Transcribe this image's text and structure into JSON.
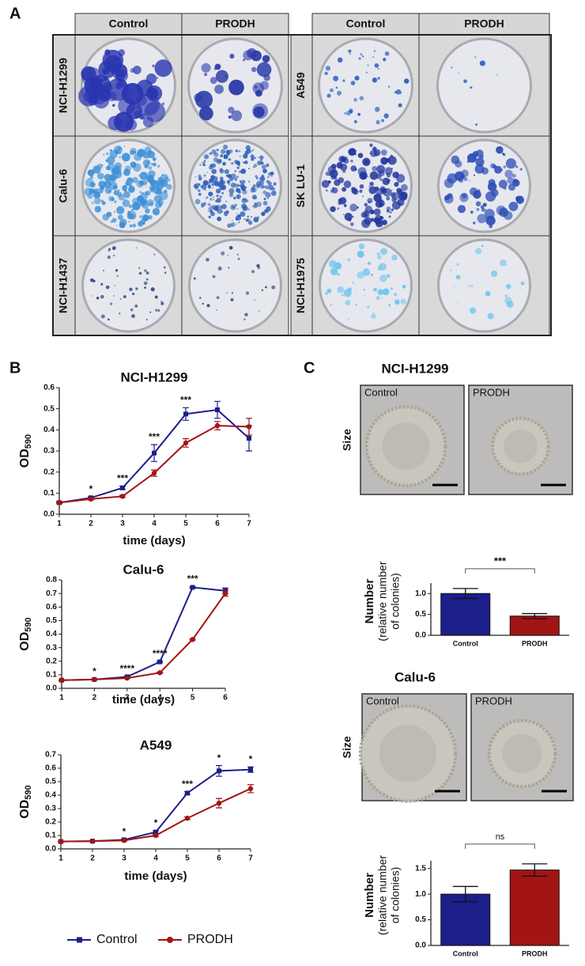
{
  "panel_labels": [
    "A",
    "B",
    "C"
  ],
  "panel_a": {
    "blocks": [
      {
        "columns": [
          "Control",
          "PRODH"
        ],
        "rows": [
          "NCI-H1299",
          "Calu-6",
          "NCI-H1437"
        ]
      },
      {
        "columns": [
          "Control",
          "PRODH"
        ],
        "rows": [
          "A549",
          "SK LU-1",
          "NCI-H1975"
        ]
      }
    ]
  },
  "chart_data": [
    {
      "type": "line",
      "title": "NCI-H1299",
      "xlabel": "time (days)",
      "ylabel": "OD",
      "ylabel_subscript": "590",
      "x": [
        1,
        2,
        3,
        4,
        5,
        6,
        7
      ],
      "xlim": [
        1,
        7
      ],
      "xticks": [
        1,
        2,
        3,
        4,
        5,
        6,
        7
      ],
      "ylim": [
        0,
        0.6
      ],
      "yticks": [
        {
          "value": 0,
          "label": "0.0"
        },
        0.1,
        0.2,
        0.3,
        0.4,
        0.5,
        0.6
      ],
      "series": [
        {
          "name": "Control",
          "color": "#1c1f8a",
          "marker": "square",
          "values": [
            0.055,
            0.078,
            0.125,
            0.29,
            0.475,
            0.495,
            0.36
          ],
          "errors": [
            0.005,
            0.005,
            0.008,
            0.04,
            0.03,
            0.04,
            0.06
          ]
        },
        {
          "name": "PRODH",
          "color": "#a31515",
          "marker": "circle",
          "values": [
            0.055,
            0.072,
            0.085,
            0.195,
            0.338,
            0.42,
            0.415
          ],
          "errors": [
            0.003,
            0.004,
            0.005,
            0.015,
            0.02,
            0.02,
            0.04
          ]
        }
      ],
      "significance": [
        null,
        "*",
        "***",
        "***",
        "***",
        null,
        null
      ]
    },
    {
      "type": "line",
      "title": "Calu-6",
      "xlabel": "time (days)",
      "ylabel": "OD",
      "ylabel_subscript": "590",
      "x": [
        1,
        2,
        3,
        4,
        5,
        6
      ],
      "xlim": [
        1,
        6
      ],
      "xticks": [
        1,
        2,
        3,
        4,
        5,
        6
      ],
      "ylim": [
        0,
        0.8
      ],
      "yticks": [
        {
          "value": 0,
          "label": "0.0"
        },
        0.1,
        0.2,
        0.3,
        0.4,
        0.5,
        0.6,
        0.7,
        0.8
      ],
      "series": [
        {
          "name": "Control",
          "color": "#1c1f8a",
          "marker": "square",
          "values": [
            0.06,
            0.065,
            0.085,
            0.195,
            0.745,
            0.72
          ],
          "errors": [
            0.003,
            0.003,
            0.004,
            0.005,
            0.005,
            0.02
          ]
        },
        {
          "name": "PRODH",
          "color": "#a31515",
          "marker": "circle",
          "values": [
            0.06,
            0.065,
            0.075,
            0.115,
            0.36,
            0.7
          ],
          "errors": [
            0.003,
            0.003,
            0.003,
            0.004,
            0.005,
            0.02
          ]
        }
      ],
      "significance": [
        null,
        "*",
        "****",
        "****",
        "***",
        null
      ]
    },
    {
      "type": "line",
      "title": "A549",
      "xlabel": "time (days)",
      "ylabel": "OD",
      "ylabel_subscript": "590",
      "x": [
        1,
        2,
        3,
        4,
        5,
        6,
        7
      ],
      "xlim": [
        1,
        7
      ],
      "xticks": [
        1,
        2,
        3,
        4,
        5,
        6,
        7
      ],
      "ylim": [
        0,
        0.7
      ],
      "yticks": [
        {
          "value": 0,
          "label": "0.0"
        },
        0.1,
        0.2,
        0.3,
        0.4,
        0.5,
        0.6,
        0.7
      ],
      "series": [
        {
          "name": "Control",
          "color": "#1c1f8a",
          "marker": "square",
          "values": [
            0.055,
            0.058,
            0.068,
            0.125,
            0.415,
            0.58,
            0.59
          ],
          "errors": [
            0.003,
            0.003,
            0.005,
            0.01,
            0.01,
            0.04,
            0.02
          ]
        },
        {
          "name": "PRODH",
          "color": "#a31515",
          "marker": "circle",
          "values": [
            0.055,
            0.057,
            0.063,
            0.1,
            0.228,
            0.34,
            0.448
          ],
          "errors": [
            0.003,
            0.003,
            0.004,
            0.008,
            0.01,
            0.035,
            0.03
          ]
        }
      ],
      "significance": [
        null,
        null,
        "*",
        "*",
        "***",
        "*",
        "*"
      ]
    },
    {
      "type": "bar",
      "title": "NCI-H1299",
      "image_row_label": "Size",
      "image_labels": [
        "Control",
        "PRODH"
      ],
      "ylabel": "Number",
      "ylabel_note": [
        "(relative number",
        "of colonies)"
      ],
      "categories": [
        "Control",
        "PRODH"
      ],
      "values": [
        1.0,
        0.46
      ],
      "errors": [
        0.12,
        0.06
      ],
      "colors": [
        "#1c1f8a",
        "#a31515"
      ],
      "ylim": [
        0,
        1.25
      ],
      "yticks": [
        {
          "value": 0,
          "label": "0.0"
        },
        0.5,
        {
          "value": 1,
          "label": "1.0"
        }
      ],
      "significance": "***"
    },
    {
      "type": "bar",
      "title": "Calu-6",
      "image_row_label": "Size",
      "image_labels": [
        "Control",
        "PRODH"
      ],
      "ylabel": "Number",
      "ylabel_note": [
        "(relative number",
        "of colonies)"
      ],
      "categories": [
        "Control",
        "PRODH"
      ],
      "values": [
        1.0,
        1.47
      ],
      "errors": [
        0.15,
        0.12
      ],
      "colors": [
        "#1c1f8a",
        "#a31515"
      ],
      "ylim": [
        0,
        1.65
      ],
      "yticks": [
        {
          "value": 0,
          "label": "0.0"
        },
        0.5,
        {
          "value": 1,
          "label": "1.0"
        },
        1.5
      ],
      "significance": "ns"
    }
  ]
}
